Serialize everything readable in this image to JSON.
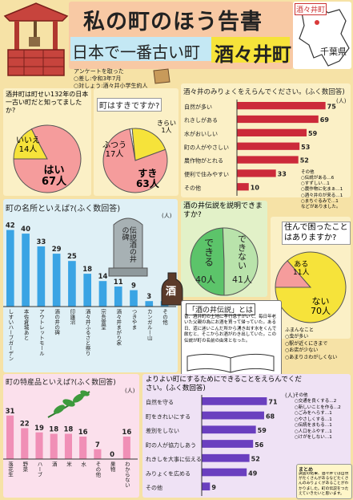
{
  "title": {
    "main": "私の町のほう告書",
    "sub_prefix": "日本で一番古い町",
    "town": "酒々井町",
    "map_label_town": "酒々井町",
    "map_label_pref": "千葉県"
  },
  "survey_note": {
    "heading": "アンケートを取った",
    "line1": "○差し:令和3年7月",
    "line2": "○対しょう:酒々井小学生約人"
  },
  "q1": {
    "question": "酒井町は町せい132年の日本一古い町だと知ってましたか?",
    "chart_data": {
      "type": "pie",
      "slices": [
        {
          "label": "いいえ",
          "value": 14,
          "value_label": "14人",
          "color": "#f6e33a"
        },
        {
          "label": "はい",
          "value": 67,
          "value_label": "67人",
          "color": "#f59c9c"
        }
      ]
    }
  },
  "q2": {
    "question": "町はすきですか?",
    "chart_data": {
      "type": "pie",
      "slices": [
        {
          "label": "きらい",
          "value": 1,
          "value_label": "1人",
          "color": "#ffffff"
        },
        {
          "label": "ふつう",
          "value": 17,
          "value_label": "17人",
          "color": "#f6e33a"
        },
        {
          "label": "すき",
          "value": 63,
          "value_label": "63人",
          "color": "#f59c9c"
        }
      ]
    }
  },
  "q3": {
    "question": "酒々井のみりょくをえらんでください。(ふく数回答)",
    "chart_data": {
      "type": "bar",
      "orientation": "horizontal",
      "categories": [
        "自然が多い",
        "れきしがある",
        "水がおいしい",
        "町の人がやさしい",
        "農作物がとれる",
        "便利で住みやすい",
        "その他"
      ],
      "values": [
        75,
        69,
        59,
        53,
        52,
        33,
        10
      ],
      "color": "#cc2a3a"
    },
    "unit": "(人)",
    "others_title": "その他",
    "others": [
      "○伝説がある…6",
      "○すずしい…1",
      "○農作物に化まぁ…1",
      "○酒々井のが来る…1",
      "○まちぐるみで…1",
      "などがありました。"
    ]
  },
  "q4": {
    "question": "町の名所といえば?(ふく数回答)",
    "unit": "(人)",
    "monument": "伝説酒の井の碑",
    "chart_data": {
      "type": "bar",
      "orientation": "vertical",
      "categories": [
        "しすいハーブガーデン",
        "本佐倉城あと",
        "アウトレットモール",
        "酒の井の碑",
        "印旛沼",
        "酒々井ふるさと祭り",
        "宗吾霊堂",
        "酒々井まがり家",
        "つきやま",
        "カンガルー山",
        "その他"
      ],
      "values": [
        42,
        40,
        33,
        29,
        25,
        18,
        14,
        11,
        9,
        3,
        3
      ],
      "color": "#3aa4e4"
    }
  },
  "q5": {
    "question": "酒の井伝説を説明できますか?",
    "chart_data": {
      "type": "pie",
      "slices": [
        {
          "label": "できる",
          "value": 40,
          "value_label": "40人",
          "color": "#5cc46a"
        },
        {
          "label": "できない",
          "value": 41,
          "value_label": "41人",
          "color": "#b9e3ab"
        }
      ]
    }
  },
  "q6": {
    "question": "住んで困ったことはありますか?",
    "chart_data": {
      "type": "pie",
      "slices": [
        {
          "label": "ある",
          "value": 11,
          "value_label": "11人",
          "color": "#f59c9c"
        },
        {
          "label": "ない",
          "value": 70,
          "value_label": "70人",
          "color": "#f6e33a"
        }
      ]
    },
    "comments_title": "ふまんなこと",
    "comments": [
      "○虫が多い",
      "○駅が近くにきまで",
      "○お店が少ない",
      "○あまりさわがしくない"
    ]
  },
  "legend_box": {
    "title": "「酒の井伝説」とは",
    "body": "昔、酒井町の土地に孝行息子がいて、毎日年老いた父親の為にお酒を買って帰っていた。ある日、道に迷いこんだ所から湧き出す水をくんで飲むと、そこからお酒がわき出していた。この伝説が町の名前の由来となった。"
  },
  "sake_char": "酒",
  "q7": {
    "question": "町の特産品といえば?(ふく数回答)",
    "unit": "(人)",
    "chart_data": {
      "type": "bar",
      "orientation": "vertical",
      "categories": [
        "落花生",
        "野菜",
        "ハーブ",
        "酒",
        "米",
        "水",
        "その他",
        "果物",
        "わからない"
      ],
      "values": [
        31,
        22,
        19,
        18,
        18,
        16,
        7,
        0,
        16
      ],
      "color": "#f08fb6"
    }
  },
  "q8": {
    "question": "よりよい町にするためにできることをえらんでください。(ふく数回答)",
    "unit": "(人)",
    "chart_data": {
      "type": "bar",
      "orientation": "horizontal",
      "categories": [
        "自然を守る",
        "町をきれいにする",
        "差別をしない",
        "町の人が協力しあう",
        "れきしを大事に伝える",
        "みりょくを広める",
        "その他"
      ],
      "values": [
        71,
        68,
        59,
        56,
        52,
        49,
        9
      ],
      "color": "#6a3fbf"
    },
    "others_title": "その他",
    "others": [
      "○交通を良くする…2",
      "○新しいことを作る…2",
      "○ごみをへらす…1",
      "○やさしくする…1",
      "○伝統をまもる…1",
      "○人口をふやす…1",
      "○けがをしない…1"
    ]
  },
  "summary": {
    "title": "まとめ",
    "body": "調査の結果、酒々井では自然がたくさんがあるなどたくさんのみりょくがあることがわかりました。町の伝説をつたえていきたいと思います。"
  }
}
